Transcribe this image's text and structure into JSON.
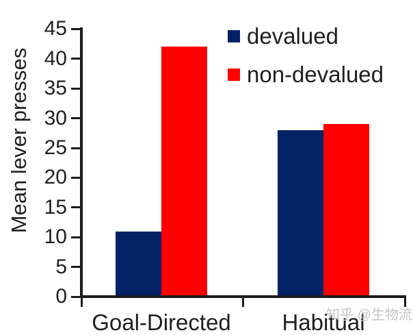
{
  "chart_data": {
    "type": "bar",
    "categories": [
      "Goal-Directed",
      "Habitual"
    ],
    "series": [
      {
        "name": "devalued",
        "color": "#032366",
        "values": [
          11,
          28
        ]
      },
      {
        "name": "non-devalued",
        "color": "#FE0000",
        "values": [
          42,
          29
        ]
      }
    ],
    "title": "",
    "xlabel": "",
    "ylabel": "Mean lever presses",
    "ylim": [
      0,
      45
    ],
    "ytick_step": 5,
    "ytick_labels": [
      "0",
      "5",
      "10",
      "15",
      "20",
      "25",
      "30",
      "35",
      "40",
      "45"
    ],
    "grid": false,
    "legend_position": "top-right"
  },
  "colors": {
    "axis": "#1c1c1c",
    "text": "#1f1f1f",
    "devalued": "#032366",
    "non_devalued": "#FE0000",
    "watermark": "#c4c4c4"
  },
  "watermark": {
    "text": "知乎 @生物流"
  }
}
